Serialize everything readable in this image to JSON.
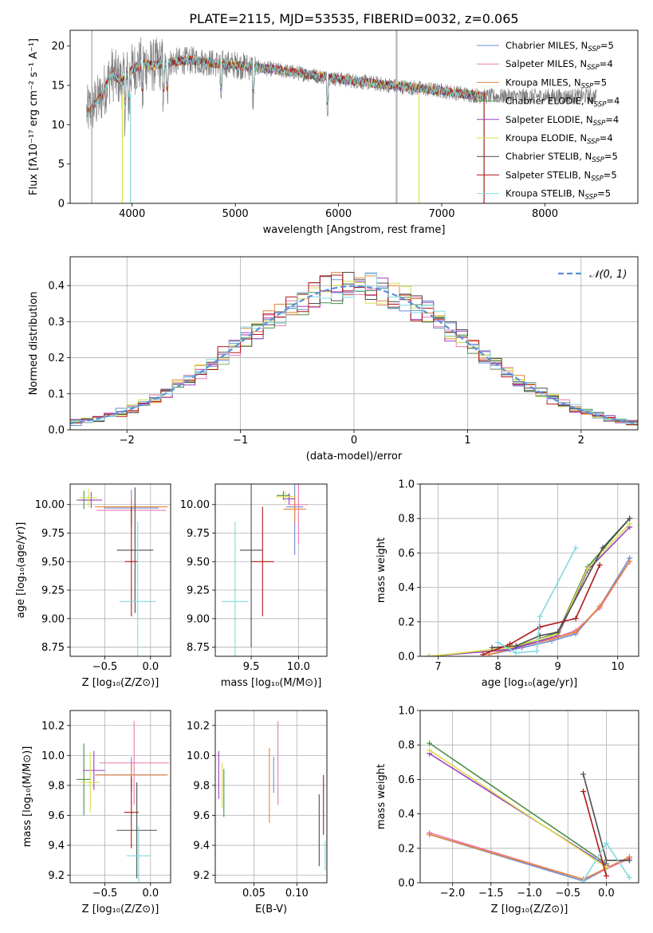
{
  "figure": {
    "title": "PLATE=2115, MJD=53535, FIBERID=0032, z=0.065"
  },
  "colors": {
    "cm": "#6a8ed8",
    "sm": "#e87ab0",
    "km": "#e8843a",
    "ce": "#4a8f4a",
    "se": "#9b3dc0",
    "ke": "#d8e04a",
    "cs": "#4d4d4d",
    "ss": "#b01818",
    "ks": "#82d8e0",
    "normal": "#5b8fd8",
    "spectrum_grey": "#808080"
  },
  "legend_models": [
    {
      "key": "cm",
      "label": "Chabrier MILES, N",
      "sub": "SSP",
      "suffix": "=5"
    },
    {
      "key": "sm",
      "label": "Salpeter MILES, N",
      "sub": "SSP",
      "suffix": "=4"
    },
    {
      "key": "km",
      "label": "Kroupa MILES, N",
      "sub": "SSP",
      "suffix": "=5"
    },
    {
      "key": "ce",
      "label": "Chabrier ELODIE, N",
      "sub": "SSP",
      "suffix": "=4"
    },
    {
      "key": "se",
      "label": "Salpeter ELODIE, N",
      "sub": "SSP",
      "suffix": "=4"
    },
    {
      "key": "ke",
      "label": "Kroupa ELODIE, N",
      "sub": "SSP",
      "suffix": "=4"
    },
    {
      "key": "cs",
      "label": "Chabrier STELIB, N",
      "sub": "SSP",
      "suffix": "=5"
    },
    {
      "key": "ss",
      "label": "Salpeter STELIB, N",
      "sub": "SSP",
      "suffix": "=5"
    },
    {
      "key": "ks",
      "label": "Kroupa STELIB, N",
      "sub": "SSP",
      "suffix": "=5"
    }
  ],
  "chart_data": [
    {
      "id": "spectrum",
      "type": "line",
      "xlabel": "wavelength [Angstrom, rest frame]",
      "ylabel": "Flux [fλ10⁻¹⁷ erg cm⁻² s⁻¹ A⁻¹]",
      "xlim": [
        3400,
        8900
      ],
      "ylim": [
        0,
        22
      ],
      "xticks": [
        4000,
        5000,
        6000,
        7000,
        8000
      ],
      "yticks": [
        0,
        5,
        10,
        15,
        20
      ],
      "continuum": {
        "x": [
          3560,
          3700,
          3800,
          3900,
          4000,
          4100,
          4200,
          4400,
          4600,
          4800,
          5000,
          5500,
          6000,
          6500,
          7000,
          7400
        ],
        "y": [
          11.5,
          13.5,
          16.5,
          15.5,
          17.0,
          17.8,
          17.5,
          18.0,
          18.2,
          17.8,
          17.6,
          16.8,
          15.8,
          15.0,
          14.3,
          13.6
        ]
      },
      "data_range": [
        3560,
        8500
      ],
      "model_range": [
        3560,
        7400
      ]
    },
    {
      "id": "residuals",
      "type": "bar",
      "xlabel": "(data-model)/error",
      "ylabel": "Normed distribution",
      "xlim": [
        -2.5,
        2.5
      ],
      "ylim": [
        0,
        0.48
      ],
      "xticks": [
        -2,
        -1,
        0,
        1,
        2
      ],
      "yticks": [
        0.0,
        0.1,
        0.2,
        0.3,
        0.4
      ],
      "bin_width": 0.1,
      "legend": "𝒩(0, 1)",
      "series": [
        {
          "name": "𝒩(0, 1)",
          "mean": 0,
          "sigma": 1
        }
      ]
    },
    {
      "id": "age-vs-Z",
      "type": "scatter",
      "xlabel": "Z [log₁₀(Z/Z⊙)]",
      "ylabel": "age  [log₁₀(age/yr)]",
      "xlim": [
        -0.88,
        0.22
      ],
      "ylim": [
        8.67,
        10.18
      ],
      "xticks": [
        -0.5,
        0.0
      ],
      "yticks": [
        8.75,
        9.0,
        9.25,
        9.5,
        9.75,
        10.0
      ],
      "points": [
        {
          "key": "cm",
          "x": -0.21,
          "y": 9.97,
          "xerr": 0.3,
          "yerr": 0.16
        },
        {
          "key": "sm",
          "x": -0.21,
          "y": 9.95,
          "xerr": 0.38,
          "yerr": 0.1
        },
        {
          "key": "km",
          "x": -0.21,
          "y": 9.98,
          "xerr": 0.4,
          "yerr": 0.08
        },
        {
          "key": "ce",
          "x": -0.73,
          "y": 10.04,
          "xerr": 0.08,
          "yerr": 0.08
        },
        {
          "key": "se",
          "x": -0.65,
          "y": 10.04,
          "xerr": 0.12,
          "yerr": 0.07
        },
        {
          "key": "ke",
          "x": -0.68,
          "y": 10.06,
          "xerr": 0.1,
          "yerr": 0.08
        },
        {
          "key": "cs",
          "x": -0.17,
          "y": 9.6,
          "xerr": 0.2,
          "yerr": 0.55
        },
        {
          "key": "ss",
          "x": -0.21,
          "y": 9.5,
          "xerr": 0.07,
          "yerr": 0.48
        },
        {
          "key": "ks",
          "x": -0.14,
          "y": 9.15,
          "xerr": 0.2,
          "yerr": 0.7
        }
      ]
    },
    {
      "id": "age-vs-mass",
      "type": "scatter",
      "xlabel": "mass [log₁₀(M/M⊙)]",
      "ylabel": "",
      "xlim": [
        9.12,
        10.3
      ],
      "ylim": [
        8.67,
        10.18
      ],
      "xticks": [
        9.5,
        10.0
      ],
      "yticks": [
        8.75,
        9.0,
        9.25,
        9.5,
        9.75,
        10.0
      ],
      "points": [
        {
          "key": "cm",
          "x": 9.96,
          "y": 9.98,
          "xerr": 0.09,
          "yerr": 0.42
        },
        {
          "key": "sm",
          "x": 10.0,
          "y": 10.0,
          "xerr": 0.1,
          "yerr": 0.35
        },
        {
          "key": "km",
          "x": 9.96,
          "y": 9.96,
          "xerr": 0.12,
          "yerr": 0.12
        },
        {
          "key": "ce",
          "x": 9.84,
          "y": 10.08,
          "xerr": 0.07,
          "yerr": 0.04
        },
        {
          "key": "se",
          "x": 9.9,
          "y": 10.05,
          "xerr": 0.06,
          "yerr": 0.05
        },
        {
          "key": "ke",
          "x": 9.86,
          "y": 10.07,
          "xerr": 0.1,
          "yerr": 0.05
        },
        {
          "key": "cs",
          "x": 9.5,
          "y": 9.6,
          "xerr": 0.12,
          "yerr": 0.85
        },
        {
          "key": "ss",
          "x": 9.62,
          "y": 9.5,
          "xerr": 0.12,
          "yerr": 0.48
        },
        {
          "key": "ks",
          "x": 9.33,
          "y": 9.15,
          "xerr": 0.14,
          "yerr": 0.7
        }
      ]
    },
    {
      "id": "massweight-vs-age",
      "type": "line",
      "xlabel": "age  [log₁₀(age/yr)]",
      "ylabel": "mass weight",
      "xlim": [
        6.7,
        10.35
      ],
      "ylim": [
        0,
        1.0
      ],
      "xticks": [
        7,
        8,
        9,
        10
      ],
      "yticks": [
        0.0,
        0.2,
        0.4,
        0.6,
        0.8,
        1.0
      ],
      "series": [
        {
          "key": "cm",
          "x": [
            7.85,
            8.4,
            8.9,
            9.3,
            9.7,
            10.2
          ],
          "y": [
            0.01,
            0.05,
            0.09,
            0.13,
            0.29,
            0.57
          ]
        },
        {
          "key": "sm",
          "x": [
            7.85,
            8.4,
            8.9,
            9.3,
            9.7,
            10.2
          ],
          "y": [
            0.01,
            0.06,
            0.1,
            0.15,
            0.28,
            0.55
          ]
        },
        {
          "key": "km",
          "x": [
            7.85,
            8.4,
            8.9,
            9.3,
            9.7,
            10.2
          ],
          "y": [
            0.01,
            0.06,
            0.1,
            0.14,
            0.29,
            0.55
          ]
        },
        {
          "key": "ce",
          "x": [
            6.85,
            8.2,
            9.0,
            9.5,
            10.2
          ],
          "y": [
            0.0,
            0.04,
            0.14,
            0.52,
            0.8
          ]
        },
        {
          "key": "se",
          "x": [
            6.85,
            8.2,
            9.0,
            9.5,
            10.2
          ],
          "y": [
            0.0,
            0.04,
            0.12,
            0.5,
            0.75
          ]
        },
        {
          "key": "ke",
          "x": [
            6.85,
            8.2,
            9.0,
            9.5,
            10.2
          ],
          "y": [
            0.0,
            0.05,
            0.13,
            0.51,
            0.77
          ]
        },
        {
          "key": "cs",
          "x": [
            7.9,
            8.3,
            8.7,
            9.0,
            9.75,
            10.2
          ],
          "y": [
            0.05,
            0.06,
            0.12,
            0.14,
            0.63,
            0.8
          ]
        },
        {
          "key": "ss",
          "x": [
            7.75,
            8.2,
            8.7,
            9.3,
            9.7
          ],
          "y": [
            0.01,
            0.07,
            0.17,
            0.22,
            0.53
          ]
        },
        {
          "key": "ks",
          "x": [
            8.0,
            8.3,
            8.65,
            8.7,
            9.3
          ],
          "y": [
            0.08,
            0.02,
            0.03,
            0.23,
            0.63
          ]
        }
      ]
    },
    {
      "id": "mass-vs-Z",
      "type": "scatter",
      "xlabel": "Z [log₁₀(Z/Z⊙)]",
      "ylabel": "mass [log₁₀(M/M⊙)]",
      "xlim": [
        -0.88,
        0.22
      ],
      "ylim": [
        9.15,
        10.3
      ],
      "xticks": [
        -0.5,
        0.0
      ],
      "yticks": [
        9.2,
        9.4,
        9.6,
        9.8,
        10.0,
        10.2
      ],
      "points": [
        {
          "key": "cm",
          "x": -0.21,
          "y": 9.87,
          "xerr": 0.38,
          "yerr": 0.12
        },
        {
          "key": "sm",
          "x": -0.18,
          "y": 9.95,
          "xerr": 0.38,
          "yerr": 0.28
        },
        {
          "key": "km",
          "x": -0.21,
          "y": 9.87,
          "xerr": 0.4,
          "yerr": 0.08
        },
        {
          "key": "ce",
          "x": -0.73,
          "y": 9.84,
          "xerr": 0.08,
          "yerr": 0.24
        },
        {
          "key": "se",
          "x": -0.62,
          "y": 9.9,
          "xerr": 0.12,
          "yerr": 0.13
        },
        {
          "key": "ke",
          "x": -0.66,
          "y": 9.82,
          "xerr": 0.1,
          "yerr": 0.2
        },
        {
          "key": "cs",
          "x": -0.15,
          "y": 9.5,
          "xerr": 0.22,
          "yerr": 0.32
        },
        {
          "key": "ss",
          "x": -0.21,
          "y": 9.62,
          "xerr": 0.08,
          "yerr": 0.24
        },
        {
          "key": "ks",
          "x": -0.13,
          "y": 9.33,
          "xerr": 0.13,
          "yerr": 0.2
        }
      ]
    },
    {
      "id": "mass-vs-EBV",
      "type": "scatter",
      "xlabel": "E(B-V)",
      "ylabel": "",
      "xlim": [
        0.005,
        0.135
      ],
      "ylim": [
        9.15,
        10.3
      ],
      "xticks": [
        0.05,
        0.1
      ],
      "yticks": [
        9.2,
        9.4,
        9.6,
        9.8,
        10.0,
        10.2
      ],
      "points": [
        {
          "key": "cm",
          "x": 0.073,
          "y": 9.87,
          "yerr": 0.12
        },
        {
          "key": "sm",
          "x": 0.078,
          "y": 9.95,
          "yerr": 0.28
        },
        {
          "key": "km",
          "x": 0.068,
          "y": 9.8,
          "yerr": 0.25
        },
        {
          "key": "ce",
          "x": 0.015,
          "y": 9.75,
          "yerr": 0.16
        },
        {
          "key": "se",
          "x": 0.009,
          "y": 9.87,
          "yerr": 0.16
        },
        {
          "key": "ke",
          "x": 0.013,
          "y": 9.8,
          "yerr": 0.15
        },
        {
          "key": "cs",
          "x": 0.126,
          "y": 9.5,
          "yerr": 0.24
        },
        {
          "key": "ss",
          "x": 0.131,
          "y": 9.67,
          "yerr": 0.2
        },
        {
          "key": "ks",
          "x": 0.133,
          "y": 9.33,
          "yerr": 0.1
        }
      ]
    },
    {
      "id": "massweight-vs-Z",
      "type": "line",
      "xlabel": "Z [log₁₀(Z/Z⊙)]",
      "ylabel": "mass weight",
      "xlim": [
        -2.42,
        0.42
      ],
      "ylim": [
        0,
        1.0
      ],
      "xticks": [
        -2.0,
        -1.5,
        -1.0,
        -0.5,
        0.0
      ],
      "yticks": [
        0.0,
        0.2,
        0.4,
        0.6,
        0.8,
        1.0
      ],
      "series": [
        {
          "key": "cm",
          "x": [
            -2.3,
            -0.3,
            0.3
          ],
          "y": [
            0.28,
            0.01,
            0.15
          ]
        },
        {
          "key": "sm",
          "x": [
            -2.3,
            -0.3,
            0.3
          ],
          "y": [
            0.29,
            0.02,
            0.14
          ]
        },
        {
          "key": "km",
          "x": [
            -2.3,
            -0.3,
            0.3
          ],
          "y": [
            0.28,
            0.02,
            0.15
          ]
        },
        {
          "key": "ce",
          "x": [
            -2.3,
            0.0
          ],
          "y": [
            0.81,
            0.11
          ]
        },
        {
          "key": "se",
          "x": [
            -2.3,
            0.0
          ],
          "y": [
            0.75,
            0.1
          ]
        },
        {
          "key": "ke",
          "x": [
            -2.3,
            0.0
          ],
          "y": [
            0.77,
            0.09
          ]
        },
        {
          "key": "cs",
          "x": [
            -0.3,
            0.0,
            0.3
          ],
          "y": [
            0.63,
            0.13,
            0.13
          ]
        },
        {
          "key": "ss",
          "x": [
            -0.3,
            0.0
          ],
          "y": [
            0.53,
            0.04
          ]
        },
        {
          "key": "ks",
          "x": [
            -0.3,
            0.0,
            0.3
          ],
          "y": [
            0.01,
            0.23,
            0.03
          ]
        }
      ]
    }
  ]
}
